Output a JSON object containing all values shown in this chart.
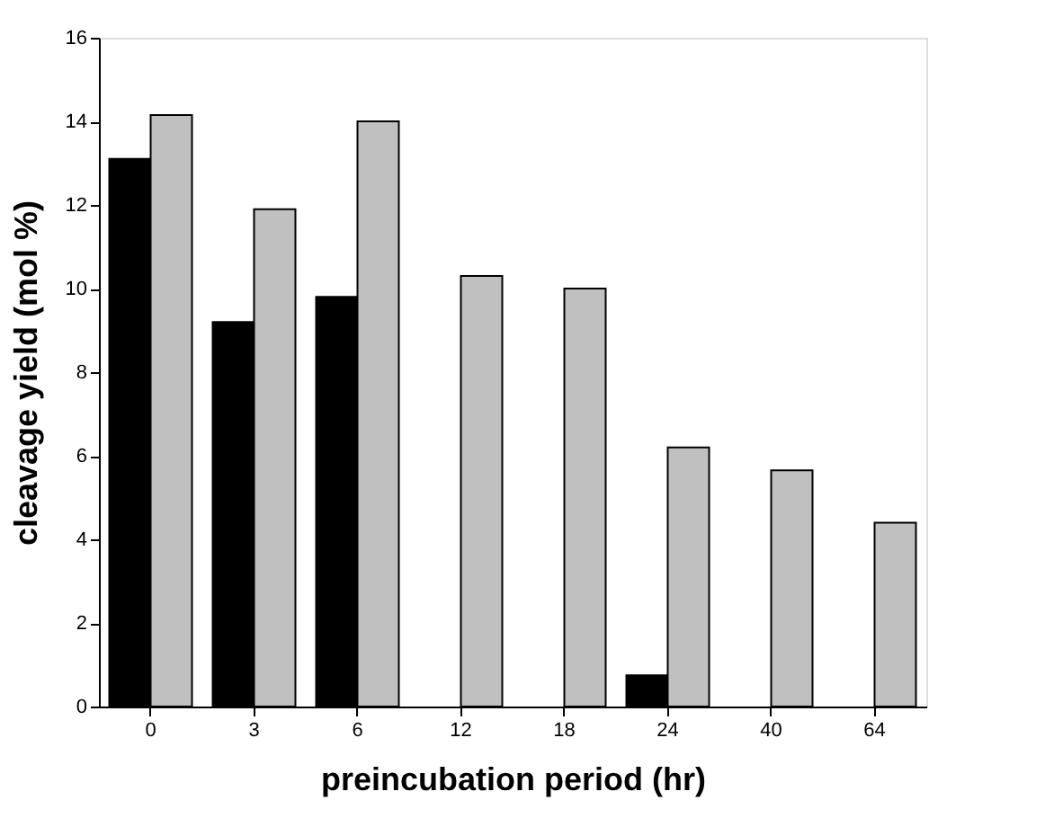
{
  "chart_data": {
    "type": "bar",
    "xlabel": "preincubation period (hr)",
    "ylabel": "cleavage yield (mol %)",
    "categories": [
      "0",
      "3",
      "6",
      "12",
      "18",
      "24",
      "40",
      "64"
    ],
    "series": [
      {
        "color": "#000000",
        "values": [
          13.1,
          9.2,
          9.8,
          null,
          null,
          0.75,
          null,
          null
        ]
      },
      {
        "color": "#c0c0c0",
        "values": [
          14.15,
          11.9,
          14.0,
          10.3,
          10.0,
          6.2,
          5.65,
          4.4
        ]
      }
    ],
    "ylim": [
      0,
      16
    ],
    "yticks": [
      0,
      2,
      4,
      6,
      8,
      10,
      12,
      14,
      16
    ],
    "grid": false,
    "legend": false
  }
}
